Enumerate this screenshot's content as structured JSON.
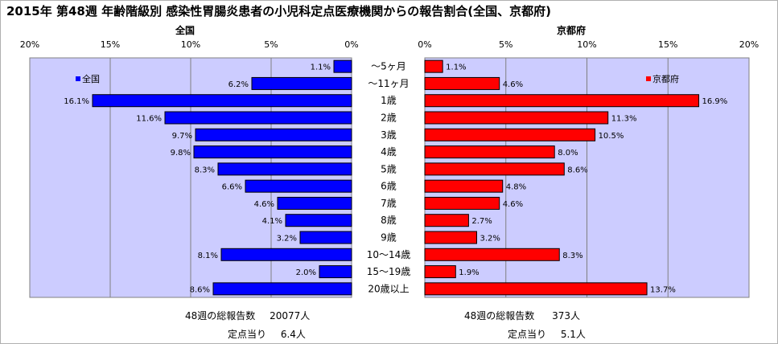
{
  "title": "2015年 第48週 年齢階級別 感染性胃腸炎患者の小児科定点医療機関からの報告割合(全国、京都府)",
  "chart_data": {
    "type": "bar",
    "categories": [
      "～5ヶ月",
      "～11ヶ月",
      "1歳",
      "2歳",
      "3歳",
      "4歳",
      "5歳",
      "6歳",
      "7歳",
      "8歳",
      "9歳",
      "10～14歳",
      "15～19歳",
      "20歳以上"
    ],
    "panels": [
      {
        "title": "全国",
        "legend": "全国",
        "color": "#0000ff",
        "values": [
          1.1,
          6.2,
          16.1,
          11.6,
          9.7,
          9.8,
          8.3,
          6.6,
          4.6,
          4.1,
          3.2,
          8.1,
          2.0,
          8.6
        ],
        "value_labels": [
          "1.1%",
          "6.2%",
          "16.1%",
          "11.6%",
          "9.7%",
          "9.8%",
          "8.3%",
          "6.6%",
          "4.6%",
          "4.1%",
          "3.2%",
          "8.1%",
          "2.0%",
          "8.6%"
        ],
        "direction": "reversed"
      },
      {
        "title": "京都府",
        "legend": "京都府",
        "color": "#ff0000",
        "values": [
          1.1,
          4.6,
          16.9,
          11.3,
          10.5,
          8.0,
          8.6,
          4.8,
          4.6,
          2.7,
          3.2,
          8.3,
          1.9,
          13.7
        ],
        "value_labels": [
          "1.1%",
          "4.6%",
          "16.9%",
          "11.3%",
          "10.5%",
          "8.0%",
          "8.6%",
          "4.8%",
          "4.6%",
          "2.7%",
          "3.2%",
          "8.3%",
          "1.9%",
          "13.7%"
        ],
        "direction": "normal"
      }
    ],
    "xlim": [
      0,
      20
    ],
    "ticks": [
      0,
      5,
      10,
      15,
      20
    ],
    "tick_labels": [
      "0%",
      "5%",
      "10%",
      "15%",
      "20%"
    ],
    "plot_background": "#ccccff",
    "grid": true,
    "legend_national_position": "top-left",
    "legend_kyoto_position": "top-right"
  },
  "footer": {
    "national": {
      "total_label": "48週の総報告数",
      "total_value": "20077人",
      "per_label": "定点当り",
      "per_value": "6.4人"
    },
    "kyoto": {
      "total_label": "48週の総報告数",
      "total_value": "373人",
      "per_label": "定点当り",
      "per_value": "5.1人"
    }
  }
}
